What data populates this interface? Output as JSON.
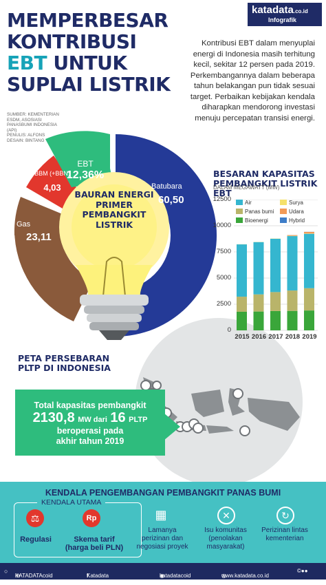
{
  "title": {
    "line1": "MEMPERBESAR",
    "line2": "KONTRIBUSI",
    "line3_accent": "EBT",
    "line3_rest": "UNTUK",
    "line4": "SUPLAI LISTRIK"
  },
  "logo": {
    "brand": "katadata",
    "domain": ".co.id",
    "label": "Infografik"
  },
  "intro": "Kontribusi EBT dalam menyuplai energi di Indonesia masih terhitung kecil, sekitar 12 persen pada 2019. Perkembangannya dalam beberapa tahun belakangan pun tidak sesuai target. Perbaikan kebijakan kendala diharapkan mendorong investasi menuju percepatan transisi energi.",
  "credits": {
    "source": "SUMBER: KEMENTERIAN ESDM, ASOSIASI PANASBUMI INDONESIA (API)",
    "writer": "PENULIS: ALFONS",
    "design": "DESAIN: BINTANG"
  },
  "mix": {
    "title": "BAURAN ENERGI PRIMER PEMBANGKIT LISTRIK",
    "segments": [
      {
        "label": "Batubara",
        "value": "60,50",
        "color": "#243a97"
      },
      {
        "label": "Gas",
        "value": "23,11",
        "color": "#8a5a3b"
      },
      {
        "label": "BBM (+BBN)",
        "value": "4,03",
        "color": "#e2372d"
      },
      {
        "label": "EBT",
        "value": "12,36%",
        "color": "#2ebc7d"
      }
    ]
  },
  "chart_data": {
    "type": "bar",
    "title": "BESARAN KAPASITAS PEMBANGKIT LISTRIK EBT",
    "ylabel": "DALAM MEGAWATT (MW)",
    "ylim": [
      0,
      12500
    ],
    "yticks": [
      "12500",
      "10000",
      "7500",
      "5000",
      "2500",
      "0"
    ],
    "categories": [
      "2015",
      "2016",
      "2017",
      "2018",
      "2019"
    ],
    "series": [
      {
        "name": "Bioenergi",
        "color": "#3aa63a",
        "values": [
          1780,
          1800,
          1850,
          1860,
          1900
        ]
      },
      {
        "name": "Panas bumi",
        "color": "#b9b46a",
        "values": [
          1440,
          1640,
          1810,
          1950,
          2130
        ]
      },
      {
        "name": "Air",
        "color": "#35b6cf",
        "values": [
          5000,
          5000,
          5100,
          5200,
          5200
        ]
      },
      {
        "name": "Surya",
        "color": "#f5e16b",
        "values": [
          10,
          15,
          20,
          25,
          30
        ]
      },
      {
        "name": "Udara",
        "color": "#f29a57",
        "values": [
          0,
          0,
          0,
          70,
          150
        ]
      },
      {
        "name": "Hybrid",
        "color": "#3e7dc8",
        "values": [
          0,
          0,
          0,
          5,
          10
        ]
      }
    ],
    "legend": "top-left"
  },
  "map": {
    "title_line1": "PETA PERSEBARAN",
    "title_line2": "PLTP DI INDONESIA",
    "box_line1": "Total kapasitas pembangkit",
    "box_value1": "2130,8",
    "box_unit1": "MW dari",
    "box_value2": "16",
    "box_unit2": "PLTP",
    "box_line3": "beroperasi pada",
    "box_line4": "akhir tahun 2019"
  },
  "obstacles": {
    "title": "KENDALA PENGEMBANGAN PEMBANGKIT PANAS BUMI",
    "main_label": "KENDALA UTAMA",
    "items": [
      {
        "icon": "regulation-icon",
        "label": "Regulasi"
      },
      {
        "icon": "tariff-icon",
        "label": "Skema tarif (harga beli PLN)"
      },
      {
        "icon": "calendar-icon",
        "label": "Lamanya perizinan dan negosiasi proyek"
      },
      {
        "icon": "issue-icon",
        "label": "Isu komunitas (penolakan masyarakat)"
      },
      {
        "icon": "cycle-icon",
        "label": "Perizinan lintas kementerian"
      }
    ]
  },
  "footer": {
    "linkedin": "KATADATAcoid",
    "facebook": "Katadata Indonesia",
    "instagram": "katadatacoid",
    "web": "www.katadata.co.id"
  }
}
